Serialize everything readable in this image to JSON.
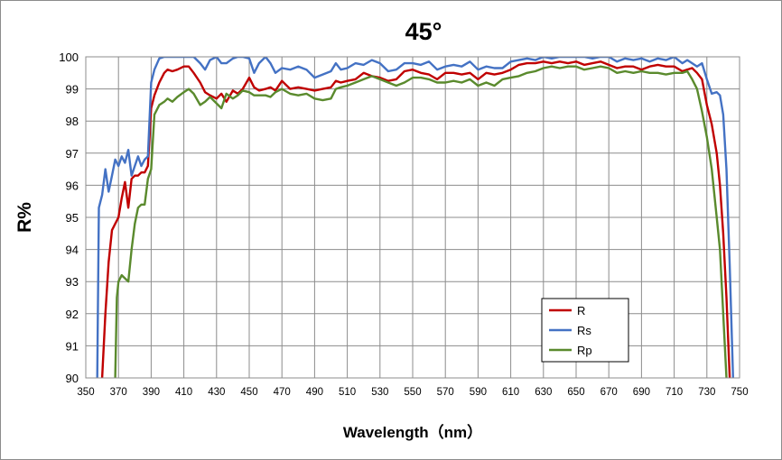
{
  "chart_data": {
    "type": "line",
    "title": "45°",
    "xlabel": "Wavelength（nm）",
    "ylabel": "R%",
    "xlim": [
      350,
      750
    ],
    "ylim": [
      90,
      100
    ],
    "x_ticks": [
      "350",
      "370",
      "390",
      "410",
      "430",
      "450",
      "470",
      "490",
      "510",
      "530",
      "550",
      "570",
      "590",
      "610",
      "630",
      "650",
      "670",
      "690",
      "710",
      "730",
      "750"
    ],
    "y_ticks": [
      "90",
      "91",
      "92",
      "93",
      "94",
      "95",
      "96",
      "97",
      "98",
      "99",
      "100"
    ],
    "grid": true,
    "legend_position": "bottom-right",
    "series": [
      {
        "name": "R",
        "color": "#c00000",
        "x": [
          360,
          362,
          364,
          366,
          368,
          370,
          372,
          374,
          376,
          378,
          380,
          382,
          384,
          386,
          388,
          390,
          392,
          395,
          398,
          400,
          403,
          406,
          410,
          413,
          416,
          420,
          423,
          426,
          430,
          433,
          436,
          440,
          443,
          446,
          450,
          453,
          456,
          460,
          463,
          466,
          470,
          475,
          480,
          485,
          490,
          495,
          500,
          503,
          506,
          510,
          515,
          520,
          525,
          530,
          535,
          540,
          545,
          550,
          555,
          560,
          565,
          570,
          575,
          580,
          585,
          590,
          595,
          600,
          605,
          610,
          615,
          620,
          625,
          630,
          635,
          640,
          645,
          650,
          655,
          660,
          665,
          670,
          675,
          680,
          685,
          690,
          695,
          700,
          705,
          710,
          715,
          718,
          721,
          724,
          727,
          730,
          733,
          736,
          738,
          740,
          742,
          744
        ],
        "y": [
          90,
          92,
          93.6,
          94.6,
          94.8,
          95.0,
          95.6,
          96.1,
          95.3,
          96.2,
          96.3,
          96.3,
          96.4,
          96.4,
          96.6,
          98.4,
          98.8,
          99.2,
          99.5,
          99.6,
          99.55,
          99.6,
          99.7,
          99.7,
          99.5,
          99.2,
          98.9,
          98.8,
          98.7,
          98.85,
          98.6,
          98.95,
          98.85,
          99.0,
          99.35,
          99.05,
          98.95,
          99.0,
          99.05,
          98.95,
          99.25,
          99.0,
          99.05,
          99.0,
          98.95,
          99.0,
          99.05,
          99.25,
          99.2,
          99.25,
          99.3,
          99.5,
          99.4,
          99.35,
          99.25,
          99.3,
          99.55,
          99.6,
          99.5,
          99.45,
          99.3,
          99.5,
          99.5,
          99.45,
          99.5,
          99.3,
          99.5,
          99.45,
          99.5,
          99.6,
          99.75,
          99.8,
          99.8,
          99.85,
          99.8,
          99.85,
          99.8,
          99.85,
          99.75,
          99.8,
          99.85,
          99.75,
          99.65,
          99.7,
          99.7,
          99.6,
          99.7,
          99.75,
          99.7,
          99.7,
          99.55,
          99.6,
          99.65,
          99.5,
          99.3,
          98.5,
          97.9,
          97.0,
          96.0,
          94.5,
          92.5,
          90
        ]
      },
      {
        "name": "Rs",
        "color": "#4472c4",
        "x": [
          357,
          358,
          360,
          362,
          364,
          366,
          368,
          370,
          372,
          374,
          376,
          378,
          380,
          382,
          384,
          386,
          388,
          390,
          392,
          395,
          398,
          400,
          403,
          406,
          410,
          413,
          416,
          420,
          423,
          426,
          430,
          433,
          436,
          440,
          443,
          446,
          450,
          453,
          456,
          460,
          463,
          466,
          470,
          475,
          480,
          485,
          490,
          495,
          500,
          503,
          506,
          510,
          515,
          520,
          525,
          530,
          535,
          540,
          545,
          550,
          555,
          560,
          565,
          570,
          575,
          580,
          585,
          590,
          595,
          600,
          605,
          610,
          615,
          620,
          625,
          630,
          635,
          640,
          645,
          650,
          655,
          660,
          665,
          670,
          675,
          680,
          685,
          690,
          695,
          700,
          705,
          710,
          715,
          718,
          721,
          724,
          727,
          730,
          733,
          736,
          738,
          740,
          742,
          744,
          746
        ],
        "y": [
          90,
          95.3,
          95.7,
          96.5,
          95.8,
          96.3,
          96.8,
          96.6,
          96.9,
          96.7,
          97.1,
          96.3,
          96.6,
          96.9,
          96.6,
          96.8,
          96.9,
          99.2,
          99.6,
          99.95,
          100,
          100,
          100,
          100,
          100,
          100,
          100,
          99.8,
          99.6,
          99.9,
          100,
          99.8,
          99.8,
          99.95,
          100,
          100,
          99.95,
          99.5,
          99.8,
          100,
          99.8,
          99.5,
          99.65,
          99.6,
          99.7,
          99.6,
          99.35,
          99.45,
          99.55,
          99.8,
          99.6,
          99.65,
          99.8,
          99.75,
          99.9,
          99.8,
          99.55,
          99.6,
          99.8,
          99.8,
          99.75,
          99.85,
          99.6,
          99.7,
          99.75,
          99.7,
          99.85,
          99.6,
          99.7,
          99.65,
          99.65,
          99.85,
          99.9,
          99.95,
          99.9,
          100,
          99.95,
          100,
          100,
          100,
          100,
          99.95,
          100,
          100,
          99.85,
          99.95,
          99.9,
          99.95,
          99.85,
          99.95,
          99.9,
          100,
          99.8,
          99.9,
          99.8,
          99.7,
          99.8,
          99.3,
          98.85,
          98.9,
          98.8,
          98.2,
          96.5,
          93.5,
          90
        ]
      },
      {
        "name": "Rp",
        "color": "#5a8a2d",
        "x": [
          368,
          369,
          370,
          372,
          374,
          376,
          378,
          380,
          382,
          384,
          386,
          388,
          390,
          392,
          395,
          398,
          400,
          403,
          406,
          410,
          413,
          416,
          420,
          423,
          426,
          430,
          433,
          436,
          440,
          443,
          446,
          450,
          453,
          456,
          460,
          463,
          466,
          470,
          475,
          480,
          485,
          490,
          495,
          500,
          503,
          506,
          510,
          515,
          520,
          525,
          530,
          535,
          540,
          545,
          550,
          555,
          560,
          565,
          570,
          575,
          580,
          585,
          590,
          595,
          600,
          605,
          610,
          615,
          620,
          625,
          630,
          635,
          640,
          645,
          650,
          655,
          660,
          665,
          670,
          675,
          680,
          685,
          690,
          695,
          700,
          705,
          710,
          715,
          718,
          721,
          724,
          727,
          730,
          733,
          736,
          738,
          740,
          742
        ],
        "y": [
          90,
          92.5,
          93.0,
          93.2,
          93.1,
          93.0,
          94.0,
          94.8,
          95.3,
          95.4,
          95.4,
          96.2,
          96.5,
          98.2,
          98.5,
          98.6,
          98.7,
          98.6,
          98.75,
          98.9,
          99.0,
          98.85,
          98.5,
          98.6,
          98.75,
          98.55,
          98.4,
          98.85,
          98.7,
          98.8,
          98.95,
          98.9,
          98.8,
          98.8,
          98.8,
          98.75,
          98.9,
          99.0,
          98.85,
          98.8,
          98.85,
          98.7,
          98.65,
          98.7,
          99.0,
          99.05,
          99.1,
          99.2,
          99.3,
          99.4,
          99.3,
          99.2,
          99.1,
          99.2,
          99.35,
          99.35,
          99.3,
          99.2,
          99.2,
          99.25,
          99.2,
          99.3,
          99.1,
          99.2,
          99.1,
          99.3,
          99.35,
          99.4,
          99.5,
          99.55,
          99.65,
          99.7,
          99.65,
          99.7,
          99.7,
          99.6,
          99.65,
          99.7,
          99.65,
          99.5,
          99.55,
          99.5,
          99.55,
          99.5,
          99.5,
          99.45,
          99.5,
          99.5,
          99.55,
          99.3,
          99.0,
          98.3,
          97.5,
          96.5,
          95.0,
          94.0,
          92.0,
          90
        ]
      }
    ]
  }
}
